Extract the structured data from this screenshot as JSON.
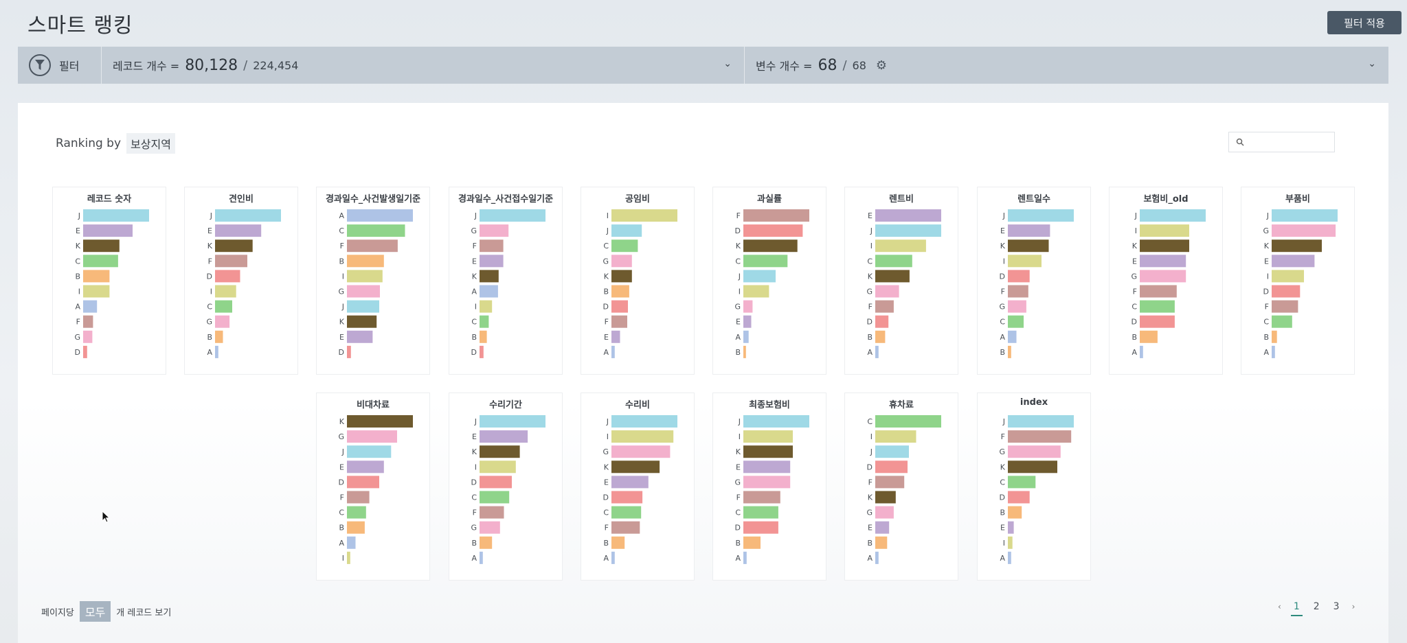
{
  "page": {
    "title": "스마트 랭킹",
    "apply_filter": "필터 적용"
  },
  "filter_bar": {
    "filter_label": "필터",
    "record_label": "레코드 개수 =",
    "record_count": "80,128",
    "record_total": "224,454",
    "var_label": "변수 개수 =",
    "var_count": "68",
    "var_total": "68"
  },
  "ranking": {
    "label": "Ranking by",
    "value": "보상지역"
  },
  "search": {
    "placeholder": ""
  },
  "colors": {
    "A": "#aec3e6",
    "B": "#f7b97a",
    "C": "#8fd48a",
    "D": "#f29494",
    "E": "#bda8d2",
    "F": "#c99a96",
    "G": "#f3b0cc",
    "I": "#d9d98c",
    "J": "#9fd9e6",
    "K": "#6e5a2e"
  },
  "chart_data": [
    {
      "type": "bar",
      "title": "레코드 숫자",
      "categories": [
        "J",
        "E",
        "K",
        "C",
        "B",
        "I",
        "A",
        "F",
        "G",
        "D"
      ],
      "values": [
        100,
        75,
        55,
        53,
        40,
        40,
        21,
        15,
        14,
        6
      ]
    },
    {
      "type": "bar",
      "title": "견인비",
      "categories": [
        "J",
        "E",
        "K",
        "F",
        "D",
        "I",
        "C",
        "G",
        "B",
        "A"
      ],
      "values": [
        100,
        70,
        57,
        49,
        38,
        32,
        26,
        22,
        12,
        5
      ]
    },
    {
      "type": "bar",
      "title": "경과일수_사건발생일기준",
      "categories": [
        "A",
        "C",
        "F",
        "B",
        "I",
        "G",
        "J",
        "K",
        "E",
        "D"
      ],
      "values": [
        100,
        88,
        77,
        56,
        54,
        50,
        49,
        45,
        39,
        6
      ]
    },
    {
      "type": "bar",
      "title": "경과일수_사건접수일기준",
      "categories": [
        "J",
        "G",
        "F",
        "E",
        "K",
        "A",
        "I",
        "C",
        "B",
        "D"
      ],
      "values": [
        100,
        44,
        36,
        36,
        29,
        28,
        19,
        14,
        11,
        6
      ]
    },
    {
      "type": "bar",
      "title": "공임비",
      "categories": [
        "I",
        "J",
        "C",
        "G",
        "K",
        "B",
        "D",
        "F",
        "E",
        "A"
      ],
      "values": [
        100,
        46,
        40,
        31,
        31,
        27,
        25,
        24,
        13,
        5
      ]
    },
    {
      "type": "bar",
      "title": "과실률",
      "categories": [
        "F",
        "D",
        "K",
        "C",
        "J",
        "I",
        "G",
        "E",
        "A",
        "B"
      ],
      "values": [
        100,
        90,
        82,
        67,
        49,
        39,
        14,
        12,
        8,
        4
      ]
    },
    {
      "type": "bar",
      "title": "렌트비",
      "categories": [
        "E",
        "J",
        "I",
        "C",
        "K",
        "G",
        "F",
        "D",
        "B",
        "A"
      ],
      "values": [
        100,
        100,
        77,
        56,
        52,
        36,
        28,
        20,
        15,
        5
      ]
    },
    {
      "type": "bar",
      "title": "렌트일수",
      "categories": [
        "J",
        "E",
        "K",
        "I",
        "D",
        "F",
        "G",
        "C",
        "A",
        "B"
      ],
      "values": [
        100,
        64,
        62,
        51,
        33,
        31,
        28,
        24,
        13,
        5
      ]
    },
    {
      "type": "bar",
      "title": "보험비_old",
      "categories": [
        "J",
        "I",
        "K",
        "E",
        "G",
        "F",
        "C",
        "D",
        "B",
        "A"
      ],
      "values": [
        100,
        75,
        75,
        70,
        70,
        56,
        53,
        53,
        27,
        5
      ]
    },
    {
      "type": "bar",
      "title": "부품비",
      "categories": [
        "J",
        "G",
        "K",
        "E",
        "I",
        "D",
        "F",
        "C",
        "B",
        "A"
      ],
      "values": [
        100,
        97,
        76,
        65,
        49,
        43,
        40,
        31,
        8,
        5
      ]
    },
    {
      "type": "bar",
      "title": "비대차료",
      "categories": [
        "K",
        "G",
        "J",
        "E",
        "D",
        "F",
        "C",
        "B",
        "A",
        "I"
      ],
      "values": [
        100,
        76,
        67,
        56,
        49,
        34,
        29,
        27,
        13,
        5
      ]
    },
    {
      "type": "bar",
      "title": "수리기간",
      "categories": [
        "J",
        "E",
        "K",
        "I",
        "D",
        "C",
        "F",
        "G",
        "B",
        "A"
      ],
      "values": [
        100,
        73,
        61,
        55,
        49,
        45,
        37,
        31,
        19,
        5
      ]
    },
    {
      "type": "bar",
      "title": "수리비",
      "categories": [
        "J",
        "I",
        "G",
        "K",
        "E",
        "D",
        "C",
        "F",
        "B",
        "A"
      ],
      "values": [
        100,
        94,
        89,
        73,
        56,
        47,
        45,
        43,
        20,
        5
      ]
    },
    {
      "type": "bar",
      "title": "최종보험비",
      "categories": [
        "J",
        "I",
        "K",
        "E",
        "G",
        "F",
        "C",
        "D",
        "B",
        "A"
      ],
      "values": [
        100,
        75,
        75,
        71,
        71,
        56,
        53,
        53,
        26,
        5
      ]
    },
    {
      "type": "bar",
      "title": "휴차료",
      "categories": [
        "C",
        "I",
        "J",
        "D",
        "F",
        "K",
        "G",
        "E",
        "B",
        "A"
      ],
      "values": [
        100,
        62,
        51,
        49,
        44,
        31,
        28,
        21,
        18,
        5
      ]
    },
    {
      "type": "bar",
      "title": "index",
      "categories": [
        "J",
        "F",
        "G",
        "K",
        "C",
        "D",
        "B",
        "E",
        "I",
        "A"
      ],
      "values": [
        100,
        96,
        80,
        75,
        42,
        33,
        21,
        9,
        7,
        5
      ]
    }
  ],
  "footer": {
    "per_page_label": "페이지당",
    "per_page_value": "모두",
    "view_label": "개 레코드 보기"
  },
  "pagination": {
    "pages": [
      "1",
      "2",
      "3"
    ],
    "active": "1"
  }
}
